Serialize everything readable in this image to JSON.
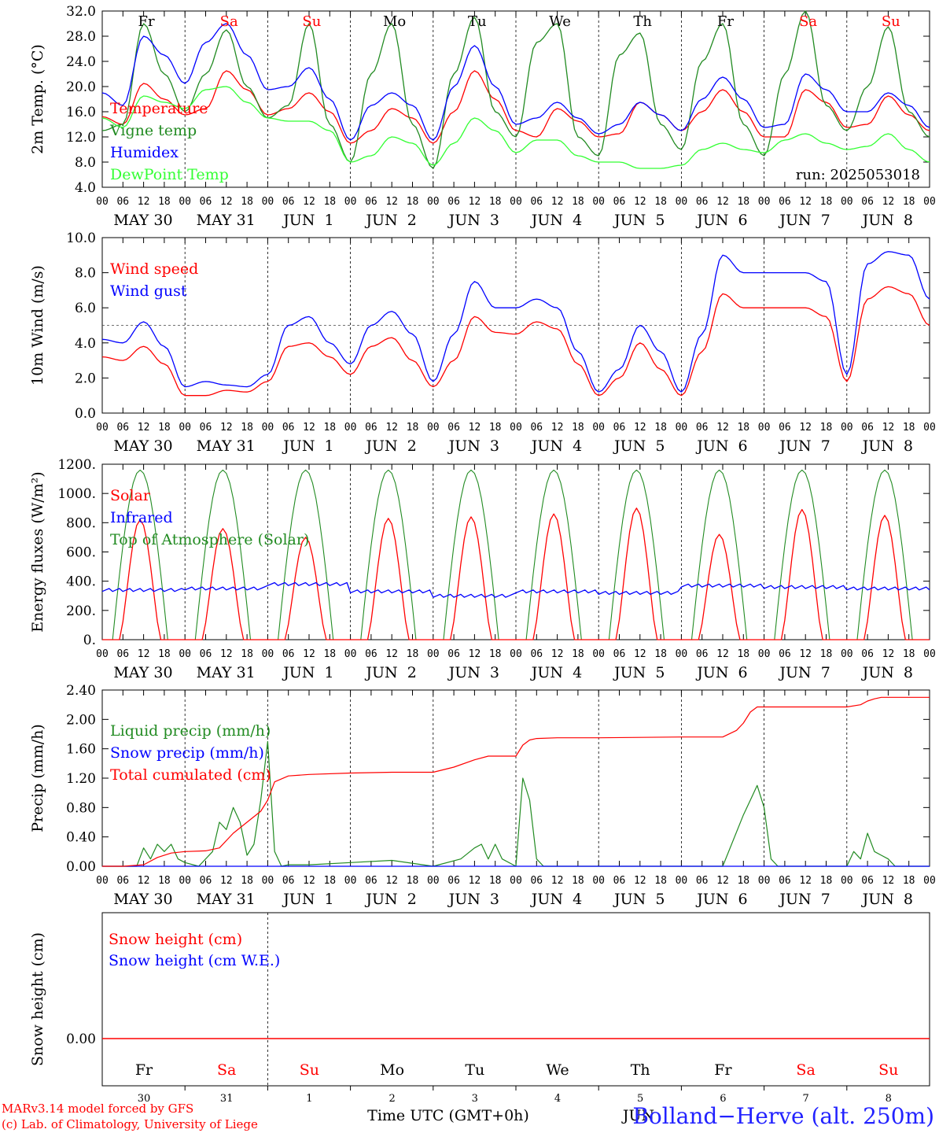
{
  "chart_data": [
    {
      "type": "line",
      "panel": "temperature",
      "ylabel": "2m Temp. (°C)",
      "ylim": [
        4,
        32
      ],
      "y_ticks": [
        "4.0",
        "8.0",
        "12.0",
        "16.0",
        "20.0",
        "24.0",
        "28.0",
        "32.0"
      ],
      "run_label": "run: 2025053018",
      "series": [
        {
          "name": "Temperature",
          "color": "#ff0000",
          "x_hours": [
            0,
            6,
            12,
            18,
            24,
            30,
            36,
            42,
            48,
            54,
            60,
            66,
            72,
            78,
            84,
            90,
            96,
            102,
            108,
            114,
            120,
            126,
            132,
            138,
            144,
            150,
            156,
            162,
            168,
            174,
            180,
            186,
            192,
            198,
            204,
            210,
            216,
            222,
            228,
            234,
            240
          ],
          "values": [
            15.2,
            14.0,
            20.5,
            18.0,
            15.5,
            16.5,
            22.5,
            19.5,
            15.5,
            16.5,
            19.0,
            16.0,
            11.0,
            13.0,
            16.5,
            15.0,
            11.0,
            16.0,
            22.5,
            18.0,
            13.0,
            12.0,
            16.5,
            14.5,
            12.0,
            12.5,
            17.5,
            15.5,
            13.0,
            16.0,
            19.5,
            16.0,
            12.0,
            12.0,
            19.5,
            17.5,
            13.5,
            14.0,
            18.5,
            15.5,
            13.0
          ]
        },
        {
          "name": "Vigne temp",
          "color": "#228b22",
          "x_hours": [
            0,
            6,
            12,
            18,
            24,
            30,
            36,
            42,
            48,
            54,
            60,
            66,
            72,
            78,
            84,
            90,
            96,
            102,
            108,
            114,
            120,
            126,
            132,
            138,
            144,
            150,
            156,
            162,
            168,
            174,
            180,
            186,
            192,
            198,
            204,
            210,
            216,
            222,
            228,
            234,
            240
          ],
          "values": [
            13.0,
            14.0,
            30.0,
            22.0,
            16.0,
            22.0,
            29.0,
            20.0,
            15.0,
            17.0,
            30.0,
            14.0,
            8.0,
            22.0,
            30.0,
            14.0,
            7.0,
            22.0,
            31.0,
            16.0,
            12.0,
            27.0,
            30.0,
            12.0,
            9.0,
            25.0,
            28.5,
            14.0,
            10.0,
            24.0,
            30.0,
            14.0,
            9.0,
            22.0,
            32.0,
            17.0,
            13.0,
            20.0,
            29.5,
            16.0,
            12.0
          ]
        },
        {
          "name": "Humidex",
          "color": "#0000ff",
          "x_hours": [
            0,
            6,
            12,
            18,
            24,
            30,
            36,
            42,
            48,
            54,
            60,
            66,
            72,
            78,
            84,
            90,
            96,
            102,
            108,
            114,
            120,
            126,
            132,
            138,
            144,
            150,
            156,
            162,
            168,
            174,
            180,
            186,
            192,
            198,
            204,
            210,
            216,
            222,
            228,
            234,
            240
          ],
          "values": [
            19.0,
            17.0,
            28.0,
            25.0,
            20.5,
            27.0,
            30.0,
            25.0,
            19.5,
            20.0,
            23.0,
            18.0,
            11.5,
            17.0,
            19.0,
            17.0,
            11.5,
            20.0,
            26.5,
            20.0,
            14.0,
            15.0,
            17.5,
            15.0,
            12.5,
            14.0,
            17.5,
            15.5,
            13.0,
            18.0,
            21.5,
            18.0,
            13.5,
            14.0,
            22.0,
            19.5,
            16.0,
            16.0,
            19.0,
            17.0,
            13.5
          ]
        },
        {
          "name": "DewPoint Temp",
          "color": "#33ff33",
          "x_hours": [
            0,
            6,
            12,
            18,
            24,
            30,
            36,
            42,
            48,
            54,
            60,
            66,
            72,
            78,
            84,
            90,
            96,
            102,
            108,
            114,
            120,
            126,
            132,
            138,
            144,
            150,
            156,
            162,
            168,
            174,
            180,
            186,
            192,
            198,
            204,
            210,
            216,
            222,
            228,
            234,
            240
          ],
          "values": [
            15.0,
            13.5,
            18.5,
            17.5,
            16.5,
            19.5,
            20.0,
            17.5,
            15.0,
            14.5,
            14.5,
            13.0,
            8.0,
            9.0,
            12.0,
            11.0,
            7.5,
            11.0,
            15.0,
            13.0,
            9.5,
            11.5,
            11.5,
            9.0,
            8.0,
            8.0,
            7.0,
            7.0,
            7.5,
            10.0,
            11.0,
            10.0,
            9.5,
            11.5,
            12.5,
            11.0,
            10.0,
            10.5,
            12.5,
            10.0,
            8.0
          ]
        }
      ]
    },
    {
      "type": "line",
      "panel": "wind",
      "ylabel": "10m Wind (m/s)",
      "ylim": [
        0,
        10
      ],
      "y_ticks": [
        "0.0",
        "2.0",
        "4.0",
        "6.0",
        "8.0",
        "10.0"
      ],
      "reference_line": 5,
      "series": [
        {
          "name": "Wind speed",
          "color": "#ff0000",
          "x_hours": [
            0,
            6,
            12,
            18,
            24,
            30,
            36,
            42,
            48,
            54,
            60,
            66,
            72,
            78,
            84,
            90,
            96,
            102,
            108,
            114,
            120,
            126,
            132,
            138,
            144,
            150,
            156,
            162,
            168,
            174,
            180,
            186,
            192,
            198,
            204,
            210,
            216,
            222,
            228,
            234,
            240
          ],
          "values": [
            3.2,
            3.0,
            3.8,
            2.8,
            1.0,
            1.0,
            1.3,
            1.2,
            1.8,
            3.8,
            4.0,
            3.2,
            2.2,
            3.8,
            4.3,
            3.0,
            1.5,
            3.0,
            5.5,
            4.6,
            4.5,
            5.2,
            4.8,
            2.8,
            1.0,
            2.0,
            4.0,
            2.5,
            1.0,
            3.5,
            6.8,
            6.0,
            6.0,
            6.0,
            6.0,
            5.5,
            1.8,
            6.5,
            7.2,
            6.8,
            5.0
          ]
        },
        {
          "name": "Wind gust",
          "color": "#0000ff",
          "x_hours": [
            0,
            6,
            12,
            18,
            24,
            30,
            36,
            42,
            48,
            54,
            60,
            66,
            72,
            78,
            84,
            90,
            96,
            102,
            108,
            114,
            120,
            126,
            132,
            138,
            144,
            150,
            156,
            162,
            168,
            174,
            180,
            186,
            192,
            198,
            204,
            210,
            216,
            222,
            228,
            234,
            240
          ],
          "values": [
            4.2,
            4.0,
            5.2,
            3.8,
            1.5,
            1.8,
            1.6,
            1.5,
            2.2,
            5.0,
            5.5,
            4.0,
            2.8,
            5.0,
            5.8,
            4.5,
            1.8,
            4.5,
            7.5,
            6.0,
            6.0,
            6.5,
            6.0,
            3.5,
            1.2,
            2.5,
            5.0,
            3.5,
            1.2,
            4.5,
            9.0,
            8.0,
            8.0,
            8.0,
            8.0,
            7.5,
            2.2,
            8.5,
            9.2,
            9.0,
            6.5
          ]
        }
      ]
    },
    {
      "type": "line",
      "panel": "energy",
      "ylabel": "Energy fluxes (W/m²)",
      "ylim": [
        0,
        1200
      ],
      "y_ticks": [
        "0.",
        "200.",
        "400.",
        "600.",
        "800.",
        "1000.",
        "1200."
      ],
      "toa_peak": 1160,
      "solar_daily_peaks": [
        820,
        760,
        700,
        830,
        840,
        860,
        900,
        720,
        890,
        850
      ],
      "infrared_daily_levels": [
        340,
        350,
        380,
        330,
        300,
        330,
        320,
        370,
        360,
        350
      ],
      "series": [
        {
          "name": "Solar",
          "color": "#ff0000"
        },
        {
          "name": "Infrared",
          "color": "#0000ff"
        },
        {
          "name": "Top of Atmosphere (Solar)",
          "color": "#228b22"
        }
      ]
    },
    {
      "type": "line",
      "panel": "precip",
      "ylabel": "Precip (mm/h)",
      "ylim": [
        0,
        2.4
      ],
      "y_ticks": [
        "0.00",
        "0.40",
        "0.80",
        "1.20",
        "1.60",
        "2.00",
        "2.40"
      ],
      "series": [
        {
          "name": "Liquid precip (mm/h)",
          "color": "#228b22",
          "x_hours": [
            0,
            6,
            10,
            12,
            14,
            16,
            18,
            20,
            22,
            24,
            28,
            32,
            34,
            36,
            38,
            40,
            42,
            44,
            46,
            48,
            50,
            52,
            54,
            60,
            72,
            84,
            96,
            104,
            108,
            110,
            112,
            114,
            116,
            120,
            122,
            124,
            126,
            128,
            132,
            144,
            168,
            180,
            186,
            188,
            190,
            192,
            194,
            196,
            216,
            218,
            220,
            222,
            224,
            226,
            228,
            230,
            240
          ],
          "values": [
            0,
            0,
            0,
            0.25,
            0.1,
            0.3,
            0.2,
            0.3,
            0.1,
            0.05,
            0,
            0.2,
            0.6,
            0.5,
            0.8,
            0.6,
            0.15,
            0.3,
            0.9,
            1.7,
            0.2,
            0,
            0.02,
            0.02,
            0.05,
            0.08,
            0,
            0.1,
            0.25,
            0.3,
            0.1,
            0.3,
            0.1,
            0,
            1.2,
            0.9,
            0.1,
            0,
            0,
            0,
            0,
            0,
            0.7,
            0.9,
            1.1,
            0.8,
            0.1,
            0,
            0,
            0.2,
            0.1,
            0.45,
            0.2,
            0.15,
            0.1,
            0,
            0
          ]
        },
        {
          "name": "Snow precip (mm/h)",
          "color": "#0000ff",
          "x_hours": [
            0,
            240
          ],
          "values": [
            0,
            0
          ]
        },
        {
          "name": "Total cumulated (cm)",
          "color": "#ff0000",
          "x_hours": [
            0,
            6,
            12,
            16,
            20,
            24,
            30,
            34,
            38,
            42,
            46,
            48,
            50,
            54,
            60,
            72,
            84,
            96,
            102,
            108,
            112,
            114,
            116,
            120,
            122,
            124,
            126,
            132,
            144,
            168,
            180,
            184,
            186,
            188,
            190,
            196,
            216,
            220,
            222,
            224,
            226,
            240
          ],
          "values": [
            0,
            0,
            0.02,
            0.12,
            0.18,
            0.2,
            0.21,
            0.25,
            0.45,
            0.6,
            0.75,
            0.9,
            1.15,
            1.23,
            1.25,
            1.27,
            1.28,
            1.28,
            1.35,
            1.45,
            1.5,
            1.5,
            1.5,
            1.5,
            1.65,
            1.72,
            1.74,
            1.75,
            1.75,
            1.76,
            1.76,
            1.85,
            1.95,
            2.1,
            2.17,
            2.17,
            2.17,
            2.2,
            2.25,
            2.28,
            2.3,
            2.3
          ]
        }
      ]
    },
    {
      "type": "line",
      "panel": "snow",
      "ylabel": "Snow height (cm)",
      "y_ticks": [
        "0.00"
      ],
      "series": [
        {
          "name": "Snow height (cm)",
          "color": "#ff0000",
          "x_hours": [
            0,
            240
          ],
          "values": [
            0,
            0
          ]
        },
        {
          "name": "Snow height (cm W.E.)",
          "color": "#0000ff",
          "x_hours": [
            0,
            240
          ],
          "values": [
            0,
            0
          ]
        }
      ]
    }
  ],
  "axis": {
    "hour_ticks": [
      "00",
      "06",
      "12",
      "18"
    ],
    "end_tick": "00",
    "dates": [
      "MAY 30",
      "MAY 31",
      "JUN  1",
      "JUN  2",
      "JUN  3",
      "JUN  4",
      "JUN  5",
      "JUN  6",
      "JUN  7",
      "JUN  8"
    ],
    "weekdays": [
      "Fr",
      "Sa",
      "Su",
      "Mo",
      "Tu",
      "We",
      "Th",
      "Fr",
      "Sa",
      "Su"
    ],
    "weekday_colors": [
      "#000000",
      "#ff0000",
      "#ff0000",
      "#000000",
      "#000000",
      "#000000",
      "#000000",
      "#000000",
      "#ff0000",
      "#ff0000"
    ],
    "day_numbers": [
      "30",
      "31",
      "1",
      "2",
      "3",
      "4",
      "5",
      "6",
      "7",
      "8"
    ],
    "xlabel": "Time UTC (GMT+0h)"
  },
  "footer": {
    "credit_line1": "MARv3.14 model forced by GFS",
    "credit_line2": "(c) Lab. of Climatology, University of Liege",
    "location": "Bolland−Herve (alt. 250m)",
    "overlap_text": "JUN"
  }
}
